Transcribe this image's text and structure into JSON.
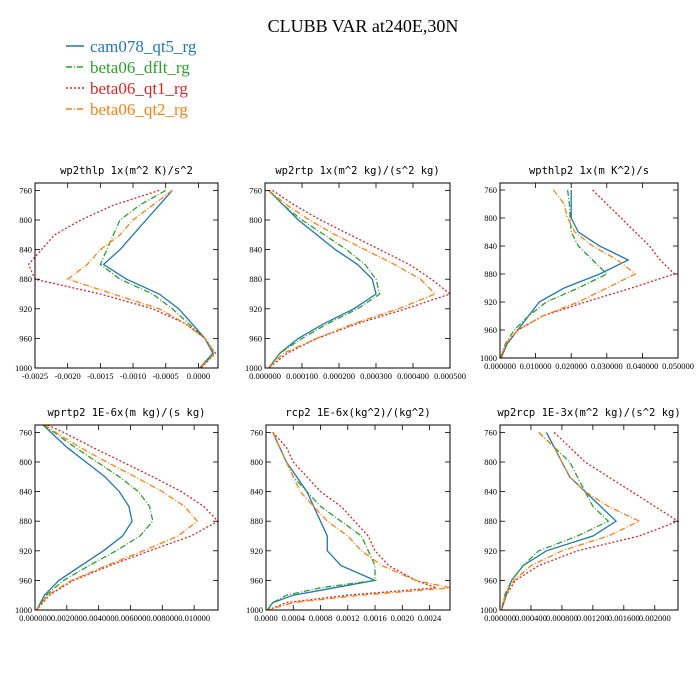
{
  "figure": {
    "title": "CLUBB VAR at240E,30N",
    "legend": [
      {
        "name": "cam078_qt5_rg",
        "color": "#1f77b4",
        "dash": "solid"
      },
      {
        "name": "beta06_dflt_rg",
        "color": "#2ca02c",
        "dash": "dashdot"
      },
      {
        "name": "beta06_qt1_rg",
        "color": "#d62728",
        "dash": "dotted"
      },
      {
        "name": "beta06_qt2_rg",
        "color": "#ff7f0e",
        "dash": "dashdot"
      }
    ]
  },
  "chart_data": [
    {
      "type": "line",
      "title": "wp2thlp  1x(m^2 K)/s^2",
      "xlim": [
        -0.0025,
        0.0003
      ],
      "ylim": [
        1000,
        750
      ],
      "xticks": [
        -0.0025,
        -0.002,
        -0.0015,
        -0.001,
        -0.0005,
        0.0
      ],
      "xtick_labels": [
        "-0.0025",
        "-0.0020",
        "-0.0015",
        "-0.0010",
        "-0.0005",
        "0.0000"
      ],
      "yticks": [
        760,
        800,
        840,
        880,
        920,
        960,
        1000
      ],
      "y": [
        760,
        780,
        800,
        820,
        840,
        860,
        880,
        900,
        920,
        940,
        960,
        980,
        1000
      ],
      "series": [
        {
          "name": "cam078_qt5_rg",
          "values": [
            -0.0004,
            -0.0006,
            -0.0008,
            -0.001,
            -0.0012,
            -0.00145,
            -0.0011,
            -0.0006,
            -0.0003,
            -0.0001,
            0.0001,
            0.00022,
            2e-05
          ]
        },
        {
          "name": "beta06_dflt_rg",
          "values": [
            -0.0005,
            -0.0009,
            -0.0012,
            -0.0013,
            -0.0014,
            -0.0015,
            -0.0012,
            -0.0007,
            -0.0004,
            -0.00015,
            0.0001,
            0.00024,
            3e-05
          ]
        },
        {
          "name": "beta06_qt1_rg",
          "values": [
            -0.0006,
            -0.0013,
            -0.0018,
            -0.0022,
            -0.0024,
            -0.0026,
            -0.0025,
            -0.0015,
            -0.0007,
            -0.0002,
            0.0001,
            0.00026,
            4e-05
          ]
        },
        {
          "name": "beta06_qt2_rg",
          "values": [
            -0.0004,
            -0.0007,
            -0.001,
            -0.0012,
            -0.0015,
            -0.0017,
            -0.002,
            -0.0013,
            -0.0006,
            -0.0002,
            0.0001,
            0.00025,
            3e-05
          ]
        }
      ]
    },
    {
      "type": "line",
      "title": "wp2rtp  1x(m^2 kg)/(s^2 kg)",
      "xlim": [
        0.0,
        0.0005
      ],
      "ylim": [
        1000,
        750
      ],
      "xticks": [
        0.0,
        0.0001,
        0.0002,
        0.0003,
        0.0004,
        0.0005
      ],
      "xtick_labels": [
        "0.000000",
        "0.000100",
        "0.000200",
        "0.000300",
        "0.000400",
        "0.000500"
      ],
      "yticks": [
        760,
        800,
        840,
        880,
        920,
        960,
        1000
      ],
      "y": [
        760,
        780,
        800,
        820,
        840,
        860,
        880,
        900,
        920,
        940,
        960,
        980,
        1000
      ],
      "series": [
        {
          "name": "cam078_qt5_rg",
          "values": [
            1e-05,
            5e-05,
            9e-05,
            0.00014,
            0.00019,
            0.00025,
            0.00029,
            0.0003,
            0.00024,
            0.00016,
            9e-05,
            4e-05,
            1e-05
          ]
        },
        {
          "name": "beta06_dflt_rg",
          "values": [
            1e-05,
            5e-05,
            0.0001,
            0.00016,
            0.00022,
            0.00027,
            0.0003,
            0.00031,
            0.00025,
            0.00017,
            0.0001,
            4e-05,
            1e-05
          ]
        },
        {
          "name": "beta06_qt1_rg",
          "values": [
            2e-05,
            8e-05,
            0.00015,
            0.00023,
            0.00031,
            0.00039,
            0.00045,
            0.0005,
            0.00038,
            0.00025,
            0.00014,
            6e-05,
            1e-05
          ]
        },
        {
          "name": "beta06_qt2_rg",
          "values": [
            1e-05,
            6e-05,
            0.00012,
            0.00019,
            0.00027,
            0.00035,
            0.00042,
            0.00046,
            0.00036,
            0.00024,
            0.00014,
            5e-05,
            1e-05
          ]
        }
      ]
    },
    {
      "type": "line",
      "title": "wpthlp2  1x(m K^2)/s",
      "xlim": [
        0.0,
        0.05
      ],
      "ylim": [
        1000,
        750
      ],
      "xticks": [
        0.0,
        0.01,
        0.02,
        0.03,
        0.04,
        0.05
      ],
      "xtick_labels": [
        "0.000000",
        "0.010000",
        "0.020000",
        "0.030000",
        "0.040000",
        "0.050000"
      ],
      "yticks": [
        760,
        800,
        840,
        880,
        920,
        960,
        1000
      ],
      "y": [
        760,
        780,
        800,
        820,
        840,
        860,
        880,
        900,
        920,
        940,
        960,
        980,
        1000
      ],
      "series": [
        {
          "name": "cam078_qt5_rg",
          "values": [
            0.02,
            0.02,
            0.02,
            0.022,
            0.028,
            0.036,
            0.028,
            0.018,
            0.011,
            0.008,
            0.005,
            0.002,
            0.0003
          ]
        },
        {
          "name": "beta06_dflt_rg",
          "values": [
            0.019,
            0.0195,
            0.0197,
            0.02,
            0.022,
            0.026,
            0.03,
            0.022,
            0.013,
            0.008,
            0.004,
            0.0015,
            0.0002
          ]
        },
        {
          "name": "beta06_qt1_rg",
          "values": [
            0.026,
            0.03,
            0.034,
            0.038,
            0.042,
            0.045,
            0.049,
            0.037,
            0.024,
            0.012,
            0.005,
            0.0017,
            0.0002
          ]
        },
        {
          "name": "beta06_qt2_rg",
          "values": [
            0.015,
            0.018,
            0.019,
            0.021,
            0.026,
            0.033,
            0.038,
            0.03,
            0.022,
            0.012,
            0.005,
            0.0016,
            0.0002
          ]
        }
      ]
    },
    {
      "type": "line",
      "title": "wprtp2  1E-6x(m kg)/(s kg)",
      "xlim": [
        0.0,
        0.0115
      ],
      "ylim": [
        1000,
        750
      ],
      "xticks": [
        0.0,
        0.002,
        0.004,
        0.006,
        0.008,
        0.01
      ],
      "xtick_labels": [
        "0.000000",
        "0.002000",
        "0.004000",
        "0.006000",
        "0.008000",
        "0.010000"
      ],
      "yticks": [
        760,
        800,
        840,
        880,
        920,
        960,
        1000
      ],
      "y": [
        750,
        760,
        780,
        800,
        820,
        840,
        860,
        880,
        900,
        920,
        940,
        960,
        980,
        1000
      ],
      "series": [
        {
          "name": "cam078_qt5_rg",
          "values": [
            0.0005,
            0.001,
            0.002,
            0.0032,
            0.0044,
            0.0053,
            0.0059,
            0.0061,
            0.0055,
            0.0043,
            0.0029,
            0.0015,
            0.0006,
            0.0001
          ]
        },
        {
          "name": "beta06_dflt_rg",
          "values": [
            0.0005,
            0.0012,
            0.0025,
            0.0039,
            0.0053,
            0.0065,
            0.0072,
            0.0074,
            0.0066,
            0.0051,
            0.0034,
            0.0018,
            0.0007,
            0.0001
          ]
        },
        {
          "name": "beta06_qt1_rg",
          "values": [
            0.0008,
            0.0018,
            0.0036,
            0.0055,
            0.0074,
            0.0092,
            0.0106,
            0.0115,
            0.0098,
            0.0072,
            0.0047,
            0.0024,
            0.0009,
            0.0001
          ]
        },
        {
          "name": "beta06_qt2_rg",
          "values": [
            0.0006,
            0.0013,
            0.0028,
            0.0045,
            0.0063,
            0.008,
            0.0094,
            0.0102,
            0.009,
            0.0068,
            0.0045,
            0.0023,
            0.0008,
            0.0001
          ]
        }
      ]
    },
    {
      "type": "line",
      "title": "rcp2  1E-6x(kg^2)/(kg^2)",
      "xlim": [
        0.0,
        0.0027
      ],
      "ylim": [
        1000,
        750
      ],
      "xticks": [
        0.0,
        0.0004,
        0.0008,
        0.0012,
        0.0016,
        0.002,
        0.0024
      ],
      "xtick_labels": [
        "0.0000",
        "0.0004",
        "0.0008",
        "0.0012",
        "0.0016",
        "0.0020",
        "0.0024"
      ],
      "yticks": [
        760,
        800,
        840,
        880,
        920,
        960,
        1000
      ],
      "y": [
        760,
        780,
        800,
        820,
        840,
        860,
        880,
        900,
        920,
        940,
        960,
        970,
        980,
        990,
        1000
      ],
      "series": [
        {
          "name": "cam078_qt5_rg",
          "values": [
            0.0001,
            0.0002,
            0.0003,
            0.00045,
            0.0006,
            0.0007,
            0.0008,
            0.0009,
            0.0009,
            0.0011,
            0.0016,
            0.001,
            0.0004,
            0.0001,
            2e-05
          ]
        },
        {
          "name": "beta06_dflt_rg",
          "values": [
            0.0001,
            0.0002,
            0.0003,
            0.0004,
            0.0006,
            0.0008,
            0.0011,
            0.0014,
            0.0015,
            0.0016,
            0.0016,
            0.0008,
            0.0003,
            0.0001,
            2e-05
          ]
        },
        {
          "name": "beta06_qt1_rg",
          "values": [
            0.0001,
            0.0003,
            0.0004,
            0.0006,
            0.0008,
            0.0011,
            0.0013,
            0.0015,
            0.0016,
            0.0018,
            0.0022,
            0.0025,
            0.0012,
            0.0003,
            3e-05
          ]
        },
        {
          "name": "beta06_qt2_rg",
          "values": [
            0.0001,
            0.0002,
            0.0003,
            0.0004,
            0.0005,
            0.0007,
            0.0009,
            0.0012,
            0.0014,
            0.0017,
            0.0022,
            0.0027,
            0.0014,
            0.0004,
            3e-05
          ]
        }
      ]
    },
    {
      "type": "line",
      "title": "wp2rcp  1E-3x(m^2 kg)/(s^2 kg)",
      "xlim": [
        0.0,
        0.0023
      ],
      "ylim": [
        1000,
        750
      ],
      "xticks": [
        0.0,
        0.0004,
        0.0008,
        0.0012,
        0.0016,
        0.002
      ],
      "xtick_labels": [
        "0.000000",
        "0.000400",
        "0.000800",
        "0.001200",
        "0.001600",
        "0.002000"
      ],
      "yticks": [
        760,
        800,
        840,
        880,
        920,
        960,
        1000
      ],
      "y": [
        760,
        780,
        800,
        820,
        840,
        860,
        880,
        900,
        920,
        940,
        960,
        980,
        1000
      ],
      "series": [
        {
          "name": "cam078_qt5_rg",
          "values": [
            0.0006,
            0.0007,
            0.0008,
            0.0009,
            0.0011,
            0.0013,
            0.0015,
            0.0012,
            0.0006,
            0.0003,
            0.00015,
            8e-05,
            2e-05
          ]
        },
        {
          "name": "beta06_dflt_rg",
          "values": [
            0.0005,
            0.0007,
            0.0009,
            0.001,
            0.0011,
            0.0012,
            0.0014,
            0.001,
            0.0005,
            0.0003,
            0.00015,
            6e-05,
            2e-05
          ]
        },
        {
          "name": "beta06_qt1_rg",
          "values": [
            0.0007,
            0.0009,
            0.0011,
            0.0014,
            0.0017,
            0.002,
            0.0023,
            0.0018,
            0.001,
            0.0005,
            0.0002,
            8e-05,
            2e-05
          ]
        },
        {
          "name": "beta06_qt2_rg",
          "values": [
            0.0005,
            0.0007,
            0.0008,
            0.0009,
            0.0011,
            0.0014,
            0.0018,
            0.0014,
            0.0008,
            0.0004,
            0.00018,
            7e-05,
            2e-05
          ]
        }
      ]
    }
  ]
}
